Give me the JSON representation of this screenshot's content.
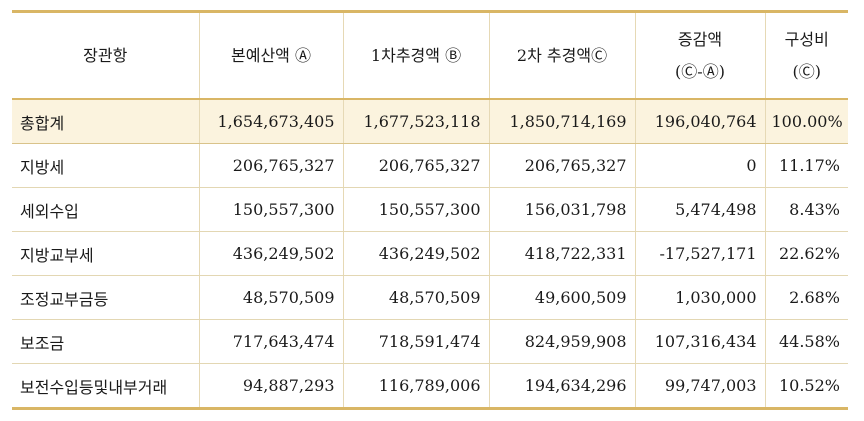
{
  "table": {
    "headers": [
      {
        "line1": "장관항",
        "line2": ""
      },
      {
        "line1": "본예산액 Ⓐ",
        "line2": ""
      },
      {
        "line1": "1차추경액 Ⓑ",
        "line2": ""
      },
      {
        "line1": "2차 추경액Ⓒ",
        "line2": ""
      },
      {
        "line1": "증감액",
        "line2": "(Ⓒ-Ⓐ)"
      },
      {
        "line1": "구성비",
        "line2": "(Ⓒ)"
      }
    ],
    "rows": [
      {
        "label": "총합계",
        "base": "1,654,673,405",
        "supp1": "1,677,523,118",
        "supp2": "1,850,714,169",
        "diff": "196,040,764",
        "ratio": "100.00%"
      },
      {
        "label": "지방세",
        "base": "206,765,327",
        "supp1": "206,765,327",
        "supp2": "206,765,327",
        "diff": "0",
        "ratio": "11.17%"
      },
      {
        "label": "세외수입",
        "base": "150,557,300",
        "supp1": "150,557,300",
        "supp2": "156,031,798",
        "diff": "5,474,498",
        "ratio": "8.43%"
      },
      {
        "label": "지방교부세",
        "base": "436,249,502",
        "supp1": "436,249,502",
        "supp2": "418,722,331",
        "diff": "-17,527,171",
        "ratio": "22.62%"
      },
      {
        "label": "조정교부금등",
        "base": "48,570,509",
        "supp1": "48,570,509",
        "supp2": "49,600,509",
        "diff": "1,030,000",
        "ratio": "2.68%"
      },
      {
        "label": "보조금",
        "base": "717,643,474",
        "supp1": "718,591,474",
        "supp2": "824,959,908",
        "diff": "107,316,434",
        "ratio": "44.58%"
      },
      {
        "label": "보전수입등및내부거래",
        "base": "94,887,293",
        "supp1": "116,789,006",
        "supp2": "194,634,296",
        "diff": "99,747,003",
        "ratio": "10.52%"
      }
    ]
  },
  "colors": {
    "border_gold": "#d9b665",
    "row_shade": "#fbf3de"
  }
}
